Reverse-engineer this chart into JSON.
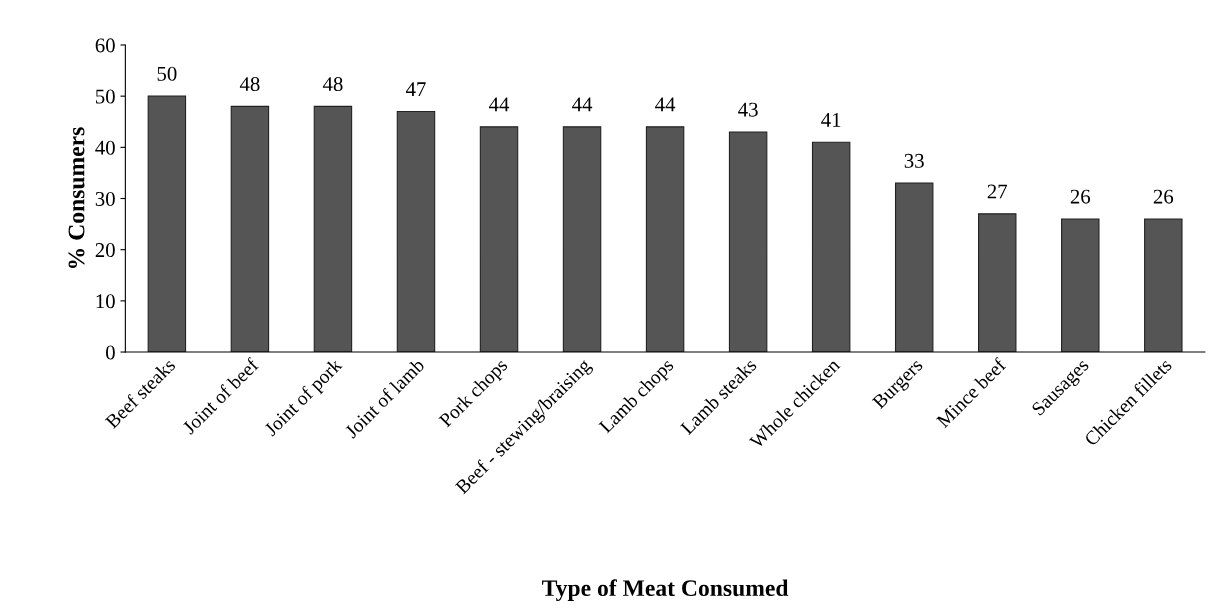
{
  "chart_data": {
    "type": "bar",
    "xlabel": "Type of Meat Consumed",
    "ylabel": "% Consumers",
    "categories": [
      "Beef steaks",
      "Joint of beef",
      "Joint of pork",
      "Joint of lamb",
      "Pork chops",
      "Beef - stewing/braising",
      "Lamb chops",
      "Lamb steaks",
      "Whole chicken",
      "Burgers",
      "Mince beef",
      "Sausages",
      "Chicken fillets"
    ],
    "values": [
      50,
      48,
      48,
      47,
      44,
      44,
      44,
      43,
      41,
      33,
      27,
      26,
      26
    ],
    "color": "#555555",
    "ylim": [
      0,
      60
    ],
    "yticks": [
      0,
      10,
      20,
      30,
      40,
      50,
      60
    ],
    "data_labels": true,
    "grid": false,
    "legend": false
  }
}
